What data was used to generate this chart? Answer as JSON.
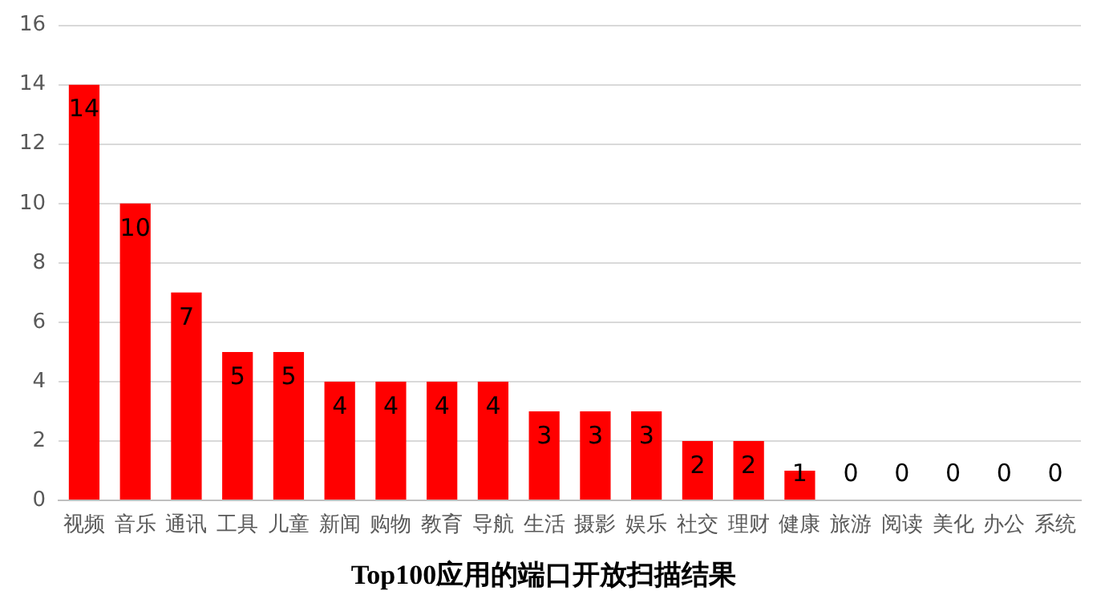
{
  "chart_data": {
    "type": "bar",
    "title": "Top100应用的端口开放扫描结果",
    "categories": [
      "视频",
      "音乐",
      "通讯",
      "工具",
      "儿童",
      "新闻",
      "购物",
      "教育",
      "导航",
      "生活",
      "摄影",
      "娱乐",
      "社交",
      "理财",
      "健康",
      "旅游",
      "阅读",
      "美化",
      "办公",
      "系统"
    ],
    "values": [
      14,
      10,
      7,
      5,
      5,
      4,
      4,
      4,
      4,
      3,
      3,
      3,
      2,
      2,
      1,
      0,
      0,
      0,
      0,
      0
    ],
    "color": "#ff0000",
    "ylim": [
      0,
      16
    ],
    "yticks": [
      0,
      2,
      4,
      6,
      8,
      10,
      12,
      14,
      16
    ],
    "grid": "y",
    "data_labels": true,
    "legend": false
  }
}
